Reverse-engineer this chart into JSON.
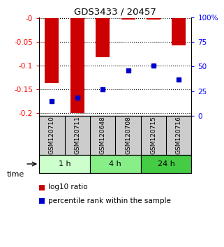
{
  "title": "GDS3433 / 20457",
  "samples": [
    "GSM120710",
    "GSM120711",
    "GSM120648",
    "GSM120708",
    "GSM120715",
    "GSM120716"
  ],
  "log10_ratio": [
    -0.137,
    -0.2,
    -0.082,
    -0.002,
    -0.003,
    -0.057
  ],
  "percentile_rank": [
    15,
    18,
    27,
    46,
    51,
    37
  ],
  "ylim_left": [
    -0.205,
    0.002
  ],
  "ylim_right": [
    -1,
    101
  ],
  "yticks_left": [
    0.0,
    -0.05,
    -0.1,
    -0.15,
    -0.2
  ],
  "yticks_right": [
    0,
    25,
    50,
    75,
    100
  ],
  "ytick_labels_left": [
    "-0",
    "-0.05",
    "-0.1",
    "-0.15",
    "-0.2"
  ],
  "ytick_labels_right": [
    "0",
    "25",
    "50",
    "75",
    "100%"
  ],
  "bar_color": "#cc0000",
  "dot_color": "#0000cc",
  "time_groups": [
    {
      "label": "1 h",
      "start": 0,
      "end": 2,
      "color": "#ccffcc"
    },
    {
      "label": "4 h",
      "start": 2,
      "end": 4,
      "color": "#88ee88"
    },
    {
      "label": "24 h",
      "start": 4,
      "end": 6,
      "color": "#44cc44"
    }
  ],
  "legend_bar_label": "log10 ratio",
  "legend_dot_label": "percentile rank within the sample",
  "time_label": "time",
  "background_color": "#ffffff",
  "sample_box_color": "#cccccc"
}
